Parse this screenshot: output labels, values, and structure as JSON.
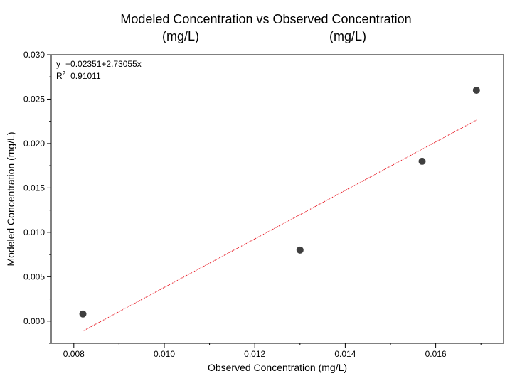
{
  "chart_data": {
    "type": "scatter",
    "title": "Modeled Concentration vs Observed Concentration",
    "title_units_left": "(mg/L)",
    "title_units_right": "(mg/L)",
    "xlabel": "Observed Concentration (mg/L)",
    "ylabel": "Modeled Concentration (mg/L)",
    "xlim": [
      0.0075,
      0.0175
    ],
    "ylim": [
      -0.0025,
      0.03
    ],
    "x_ticks": [
      "0.008",
      "0.010",
      "0.012",
      "0.014",
      "0.016"
    ],
    "y_ticks": [
      "0.000",
      "0.005",
      "0.010",
      "0.015",
      "0.020",
      "0.025",
      "0.030"
    ],
    "points": [
      {
        "x": 0.0082,
        "y": 0.0008
      },
      {
        "x": 0.013,
        "y": 0.008
      },
      {
        "x": 0.0157,
        "y": 0.018
      },
      {
        "x": 0.0169,
        "y": 0.026
      }
    ],
    "fit": {
      "intercept": -0.02351,
      "slope": 2.73055,
      "x_range": [
        0.0082,
        0.0169
      ],
      "equation_text": "y=−0.02351+2.73055x",
      "r2_prefix": "R",
      "r2_sup": "2",
      "r2_value_text": "=0.91011",
      "color": "#e8202a"
    },
    "marker_color": "#3f3f3f",
    "grid": false,
    "legend": "none"
  }
}
